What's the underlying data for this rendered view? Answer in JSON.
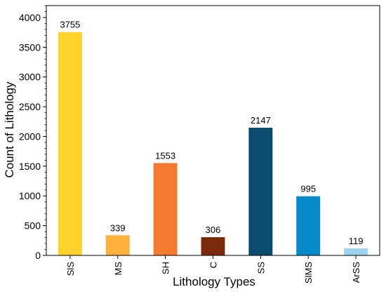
{
  "chart_data": {
    "type": "bar",
    "title": "",
    "xlabel": "Lithology Types",
    "ylabel": "Count of Lithology",
    "categories": [
      "SlS",
      "MS",
      "SH",
      "C",
      "SS",
      "SlMS",
      "ArSS"
    ],
    "values": [
      3755,
      339,
      1553,
      306,
      2147,
      995,
      119
    ],
    "colors": [
      "#FDD22A",
      "#FDB13B",
      "#F47A30",
      "#7A2A0B",
      "#0A4B6E",
      "#0589C8",
      "#9ED3F0"
    ],
    "ylim": [
      0,
      4200
    ],
    "yticks": [
      0,
      500,
      1000,
      1500,
      2000,
      2500,
      3000,
      3500,
      4000
    ],
    "grid": false,
    "legend": "none"
  }
}
